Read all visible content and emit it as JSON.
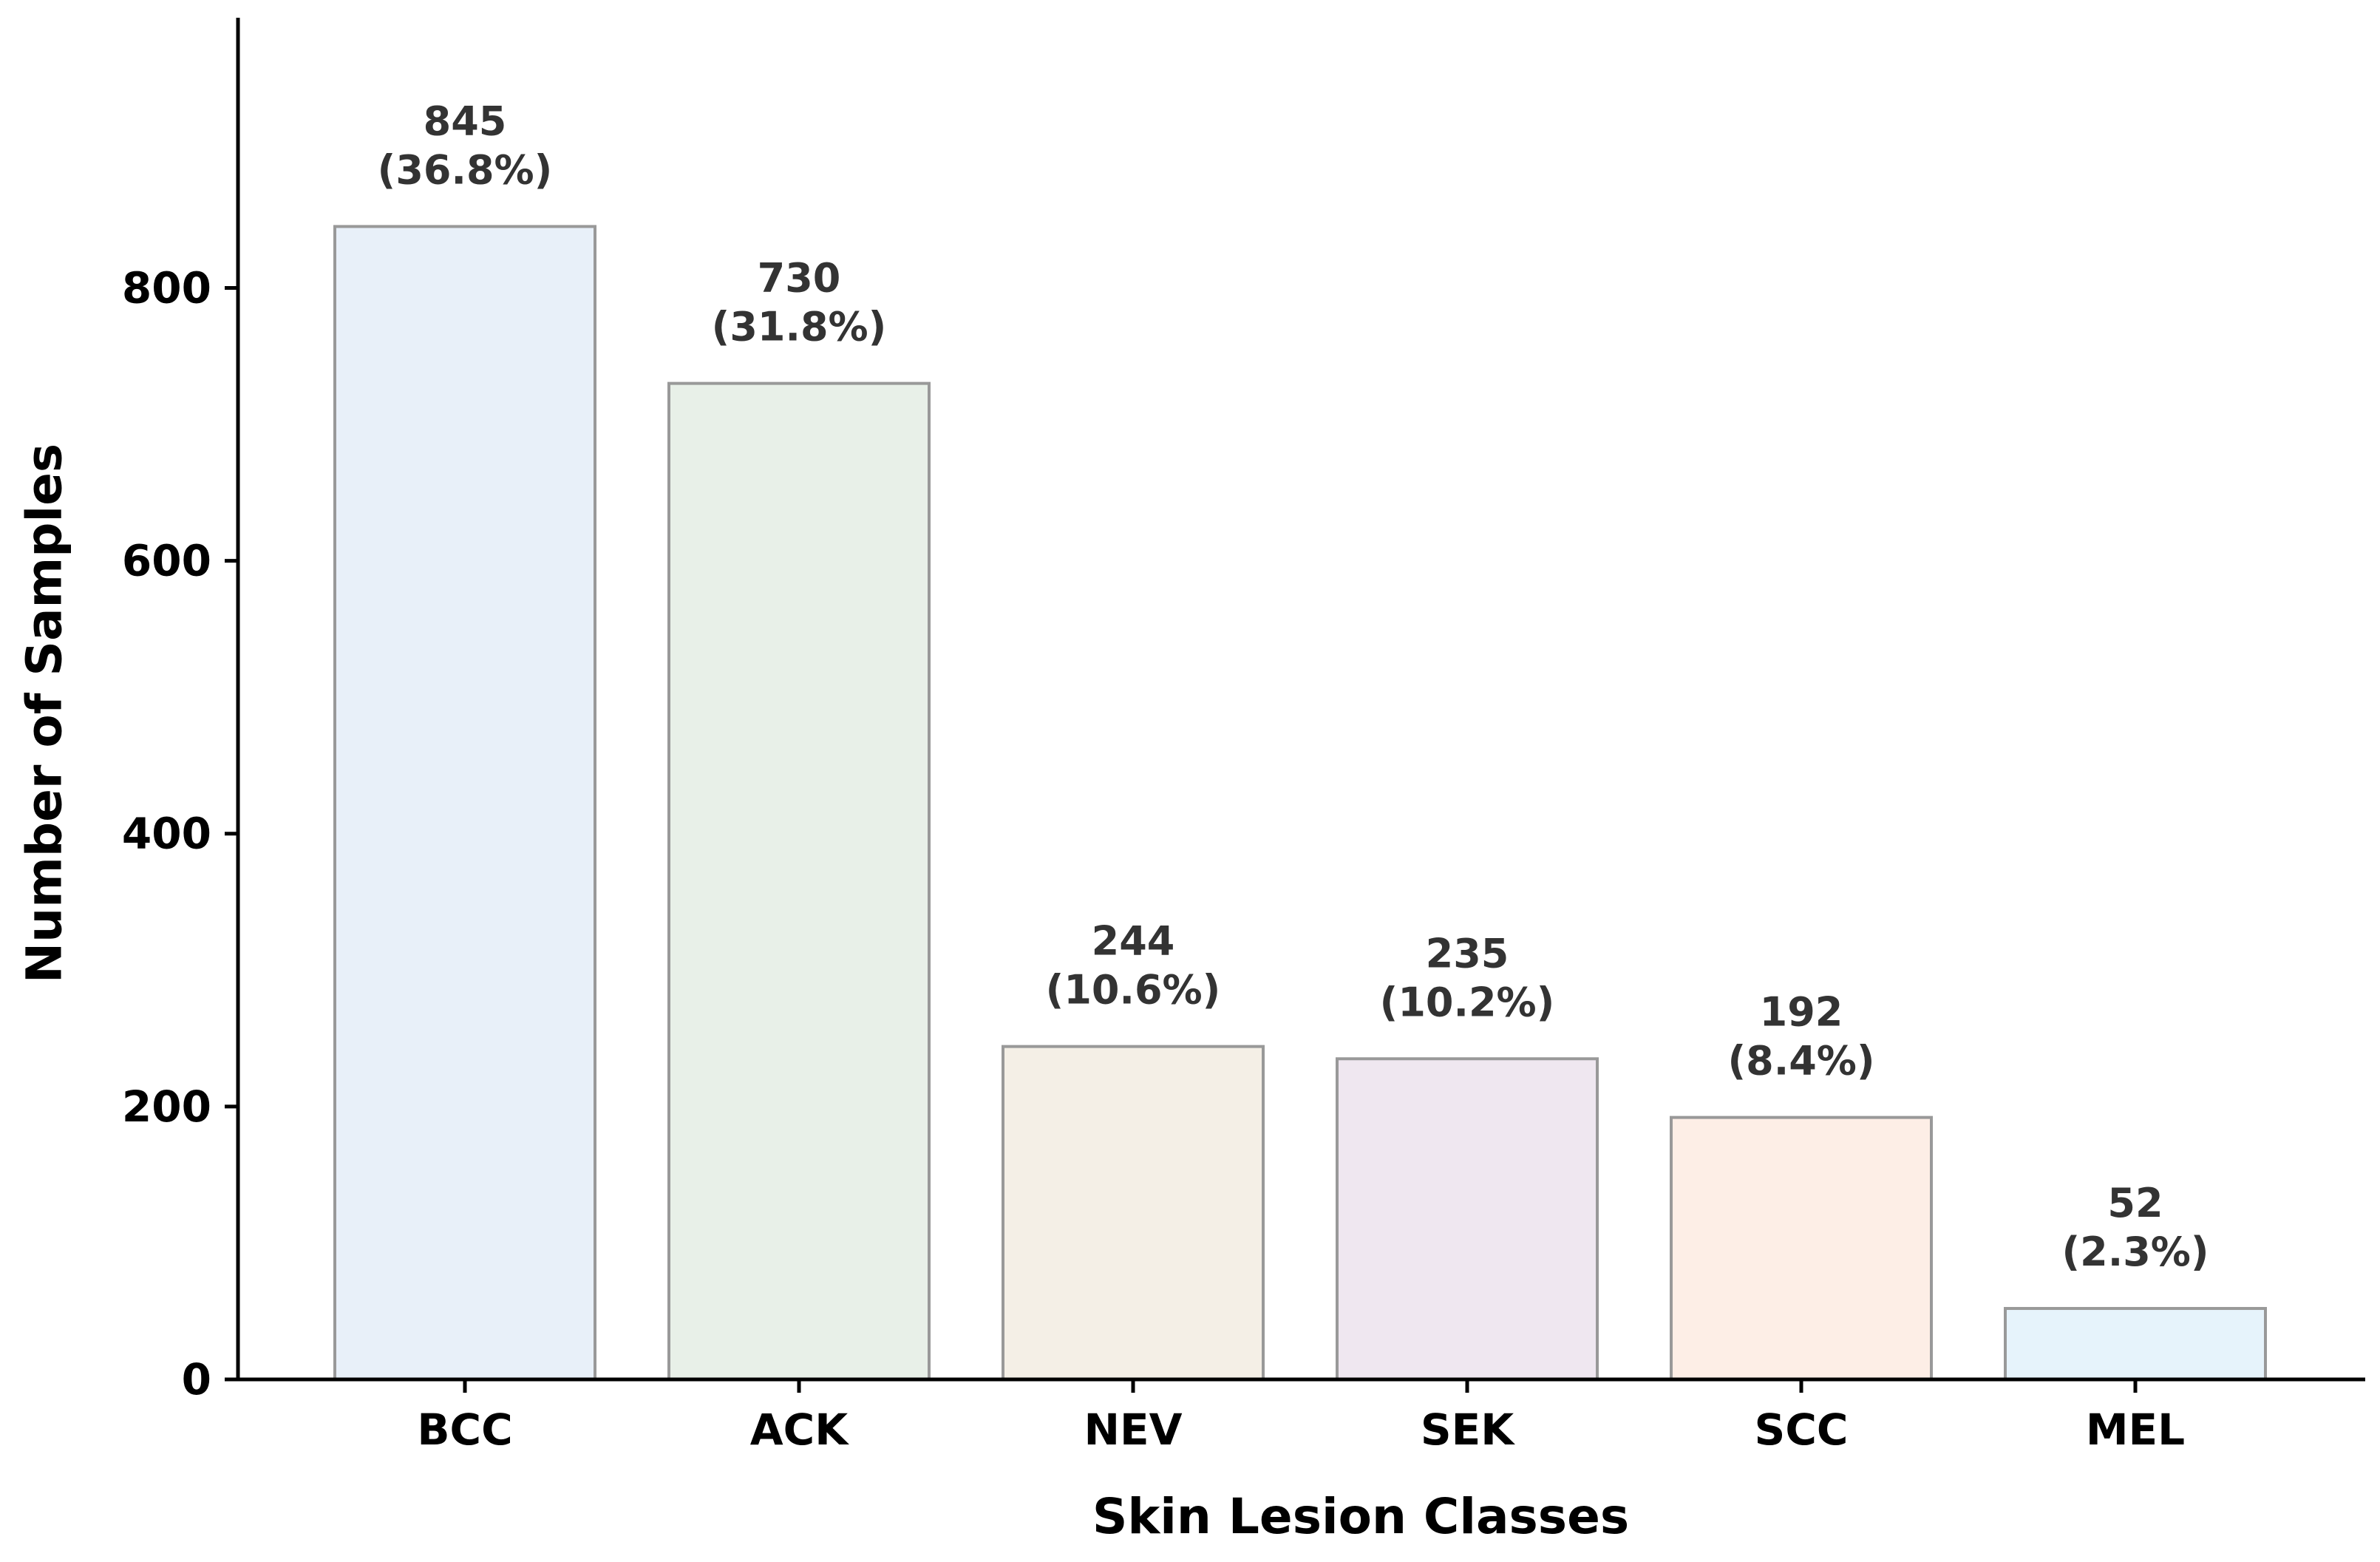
{
  "chart_data": {
    "type": "bar",
    "title": "",
    "xlabel": "Skin Lesion Classes",
    "ylabel": "Number of Samples",
    "categories": [
      "BCC",
      "ACK",
      "NEV",
      "SEK",
      "SCC",
      "MEL"
    ],
    "values": [
      845,
      730,
      244,
      235,
      192,
      52
    ],
    "percent_labels": [
      "(36.8%)",
      "(31.8%)",
      "(10.6%)",
      "(10.2%)",
      "(8.4%)",
      "(2.3%)"
    ],
    "bar_colors": [
      "#e8f0f9",
      "#e8f0e8",
      "#f4efe6",
      "#efe7f0",
      "#fdeee6",
      "#e6f3fb"
    ],
    "bar_edge_color": "#999999",
    "yticks": [
      0,
      200,
      400,
      600,
      800
    ],
    "ylim": [
      0,
      998
    ],
    "grid": false,
    "legend": "none"
  }
}
